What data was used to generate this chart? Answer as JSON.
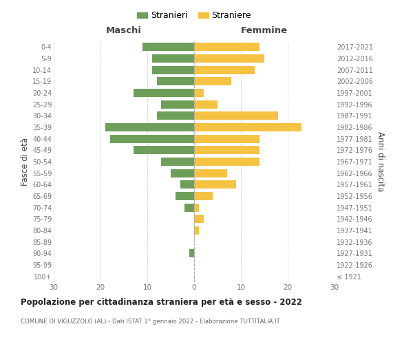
{
  "age_groups": [
    "100+",
    "95-99",
    "90-94",
    "85-89",
    "80-84",
    "75-79",
    "70-74",
    "65-69",
    "60-64",
    "55-59",
    "50-54",
    "45-49",
    "40-44",
    "35-39",
    "30-34",
    "25-29",
    "20-24",
    "15-19",
    "10-14",
    "5-9",
    "0-4"
  ],
  "birth_years": [
    "≤ 1921",
    "1922-1926",
    "1927-1931",
    "1932-1936",
    "1937-1941",
    "1942-1946",
    "1947-1951",
    "1952-1956",
    "1957-1961",
    "1962-1966",
    "1967-1971",
    "1972-1976",
    "1977-1981",
    "1982-1986",
    "1987-1991",
    "1992-1996",
    "1997-2001",
    "2002-2006",
    "2007-2011",
    "2012-2016",
    "2017-2021"
  ],
  "maschi": [
    0,
    0,
    1,
    0,
    0,
    0,
    2,
    4,
    3,
    5,
    7,
    13,
    18,
    19,
    8,
    7,
    13,
    8,
    9,
    9,
    11
  ],
  "femmine": [
    0,
    0,
    0,
    0,
    1,
    2,
    1,
    4,
    9,
    7,
    14,
    14,
    14,
    23,
    18,
    5,
    2,
    8,
    13,
    15,
    14
  ],
  "color_maschi": "#6d9f5b",
  "color_femmine": "#f5c242",
  "title": "Popolazione per cittadinanza straniera per età e sesso - 2022",
  "subtitle": "COMUNE DI VIGUZZOLO (AL) - Dati ISTAT 1° gennaio 2022 - Elaborazione TUTTITALIA.IT",
  "xlabel_left": "Maschi",
  "xlabel_right": "Femmine",
  "ylabel_left": "Fasce di età",
  "ylabel_right": "Anni di nascita",
  "legend_maschi": "Stranieri",
  "legend_femmine": "Straniere",
  "xlim": 30,
  "background_color": "#ffffff",
  "grid_color": "#cccccc"
}
